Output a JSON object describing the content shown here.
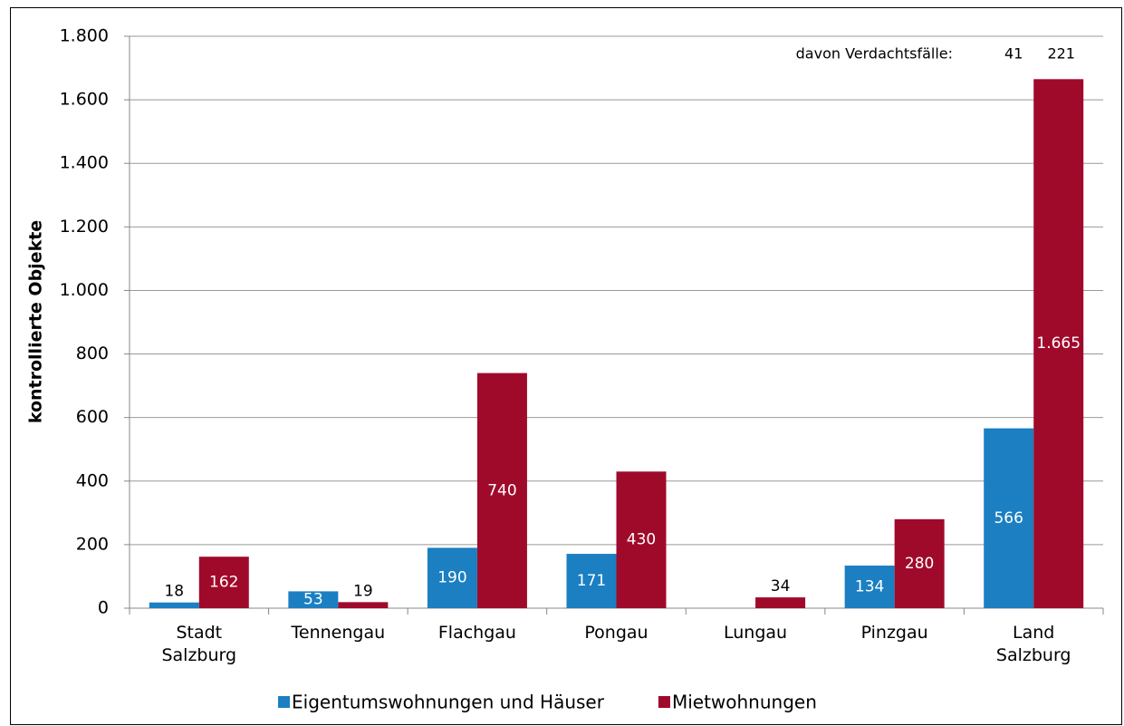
{
  "chart_data": {
    "type": "bar",
    "y_label": "kontrollierte Objekte",
    "categories": [
      "Stadt Salzburg",
      "Tennengau",
      "Flachgau",
      "Pongau",
      "Lungau",
      "Pinzgau",
      "Land Salzburg"
    ],
    "series": [
      {
        "name": "Eigentumswohnungen und Häuser",
        "color": "#1b7fc2",
        "values": [
          18,
          53,
          190,
          171,
          null,
          134,
          566
        ]
      },
      {
        "name": "Mietwohnungen",
        "color": "#a00a2a",
        "values": [
          162,
          19,
          740,
          430,
          34,
          280,
          1665
        ],
        "value_labels": [
          "162",
          "19",
          "740",
          "430",
          "34",
          "280",
          "1.665"
        ]
      }
    ],
    "ylim": [
      0,
      1800
    ],
    "yticks": [
      0,
      200,
      400,
      600,
      800,
      {
        "value": 1000,
        "label": "1.000"
      },
      {
        "value": 1200,
        "label": "1.200"
      },
      {
        "value": 1400,
        "label": "1.400"
      },
      {
        "value": 1600,
        "label": "1.600"
      },
      {
        "value": 1800,
        "label": "1.800"
      }
    ],
    "grid": true,
    "legend": "bottom",
    "annotation": {
      "text": "davon Verdachtsfälle:",
      "values": [
        41,
        221
      ]
    }
  }
}
